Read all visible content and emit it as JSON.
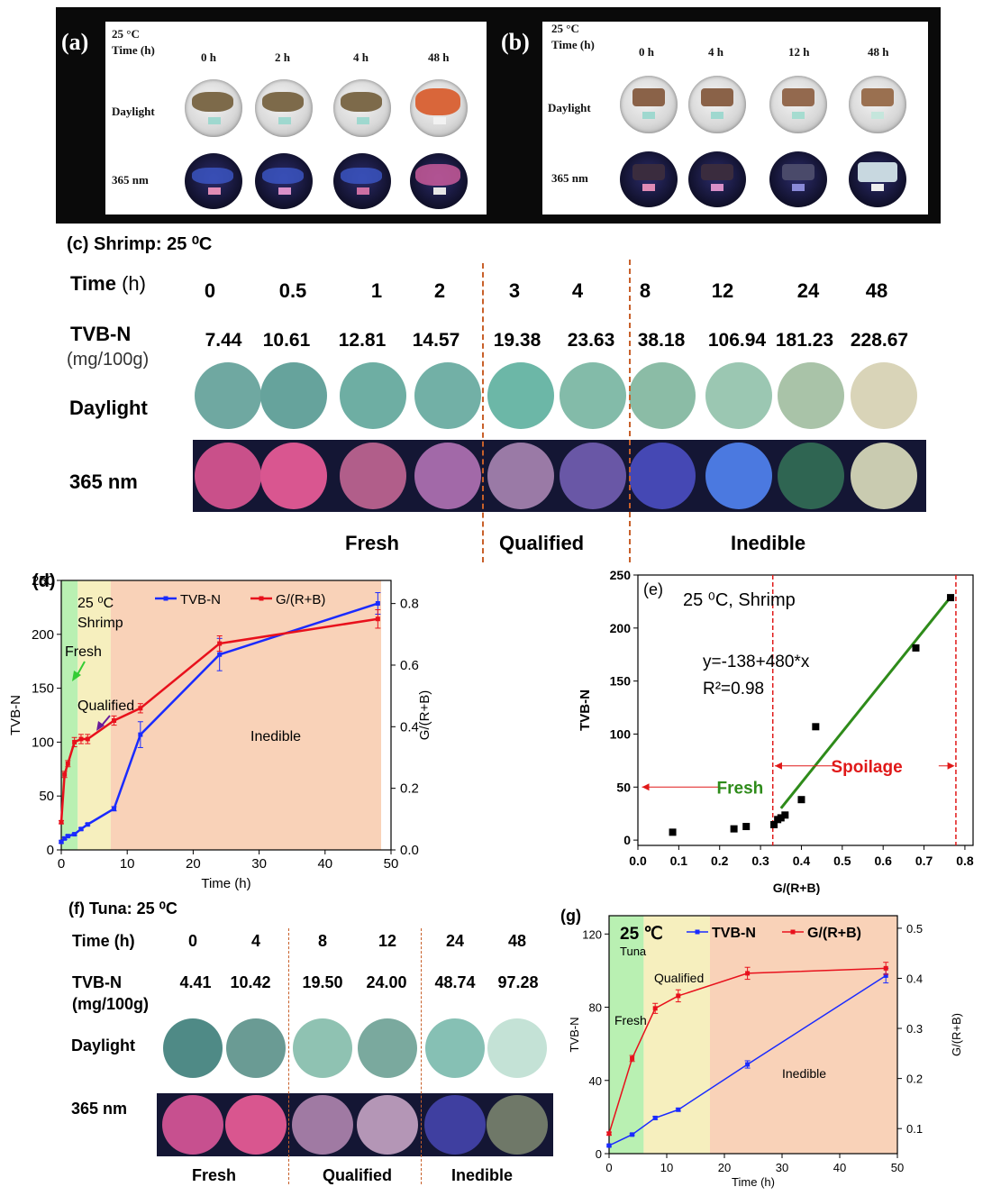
{
  "panel_a": {
    "tag": "(a)",
    "temp": "25 °C",
    "time_label": "Time (h)",
    "times": [
      "0 h",
      "2 h",
      "4 h",
      "48 h"
    ],
    "row_daylight": "Daylight",
    "row_uv": "365 nm"
  },
  "panel_b": {
    "tag": "(b)",
    "temp": "25 °C",
    "time_label": "Time (h)",
    "times": [
      "0 h",
      "4 h",
      "12 h",
      "48 h"
    ],
    "row_daylight": "Daylight",
    "row_uv": "365 nm"
  },
  "panel_c": {
    "title": "(c) Shrimp: 25 ⁰C",
    "time_label": "Time",
    "time_unit": "(h)",
    "times": [
      "0",
      "0.5",
      "1",
      "2",
      "3",
      "4",
      "8",
      "12",
      "24",
      "48"
    ],
    "tvbn_label": "TVB-N",
    "tvbn_unit": "(mg/100g)",
    "tvbn": [
      "7.44",
      "10.61",
      "12.81",
      "14.57",
      "19.38",
      "23.63",
      "38.18",
      "106.94",
      "181.23",
      "228.67"
    ],
    "row_daylight": "Daylight",
    "row_uv": "365 nm",
    "daylight_colors": [
      "#6fa8a1",
      "#66a39c",
      "#6eaea3",
      "#72b0a6",
      "#6cb7a7",
      "#83bba9",
      "#8bbca6",
      "#9bc7b2",
      "#a9c3a8",
      "#d9d4b8"
    ],
    "uv_colors": [
      "#c9508a",
      "#d95690",
      "#b15e8a",
      "#a269a8",
      "#9a7aa6",
      "#6957a6",
      "#4548b4",
      "#4b79e0",
      "#2f6552",
      "#c9cbb0"
    ],
    "categories": [
      "Fresh",
      "Qualified",
      "Inedible"
    ]
  },
  "panel_d": {
    "tag": "(d)",
    "ann_temp": "25 ⁰C",
    "ann_species": "Shrimp",
    "zone_fresh": "Fresh",
    "zone_qualified": "Qualified",
    "zone_inedible": "Inedible",
    "legend_tvbn": "TVB-N",
    "legend_ratio": "G/(R+B)",
    "xlabel": "Time (h)",
    "ylabel_left": "TVB-N",
    "ylabel_right": "G/(R+B)",
    "xticks": [
      "0",
      "10",
      "20",
      "30",
      "40",
      "50"
    ],
    "yticks_left": [
      "0",
      "50",
      "100",
      "150",
      "200",
      "250"
    ],
    "yticks_right": [
      "0.0",
      "0.2",
      "0.4",
      "0.6",
      "0.8"
    ]
  },
  "panel_e": {
    "tag": "(e)",
    "title": "25 ⁰C, Shrimp",
    "equation": "y=-138+480*x",
    "r2": "R²=0.98",
    "fresh_label": "Fresh",
    "spoilage_label": "Spoilage",
    "xlabel": "G/(R+B)",
    "ylabel": "TVB-N",
    "xticks": [
      "0.0",
      "0.1",
      "0.2",
      "0.3",
      "0.4",
      "0.5",
      "0.6",
      "0.7",
      "0.8"
    ],
    "yticks": [
      "0",
      "50",
      "100",
      "150",
      "200",
      "250"
    ]
  },
  "panel_f": {
    "title": "(f) Tuna: 25 ⁰C",
    "time_label": "Time (h)",
    "times": [
      "0",
      "4",
      "8",
      "12",
      "24",
      "48"
    ],
    "tvbn_label": "TVB-N",
    "tvbn_unit": "(mg/100g)",
    "tvbn": [
      "4.41",
      "10.42",
      "19.50",
      "24.00",
      "48.74",
      "97.28"
    ],
    "row_daylight": "Daylight",
    "row_uv": "365 nm",
    "daylight_colors": [
      "#4f8a86",
      "#6a9b94",
      "#8fc2b2",
      "#7aa99e",
      "#86c0b4",
      "#c4e2d6"
    ],
    "uv_colors": [
      "#c7508f",
      "#d9568f",
      "#a07aa3",
      "#b496b6",
      "#3f3fa0",
      "#6f7868"
    ],
    "categories": [
      "Fresh",
      "Qualified",
      "Inedible"
    ]
  },
  "panel_g": {
    "tag": "(g)",
    "ann_temp": "25 ℃",
    "ann_species": "Tuna",
    "zone_fresh": "Fresh",
    "zone_qualified": "Qualified",
    "zone_inedible": "Inedible",
    "legend_tvbn": "TVB-N",
    "legend_ratio": "G/(R+B)",
    "xlabel": "Time (h)",
    "ylabel_left": "TVB-N",
    "ylabel_right": "G/(R+B)",
    "xticks": [
      "0",
      "10",
      "20",
      "30",
      "40",
      "50"
    ],
    "yticks_left": [
      "0",
      "40",
      "80",
      "120"
    ],
    "yticks_right": [
      "0.1",
      "0.2",
      "0.3",
      "0.4",
      "0.5"
    ]
  },
  "chart_data": [
    {
      "id": "d",
      "type": "line",
      "xlim": [
        0,
        50
      ],
      "ylim_left": [
        0,
        250
      ],
      "ylim_right": [
        0,
        0.875
      ],
      "zones": [
        {
          "name": "Fresh",
          "from": 0,
          "to": 2.5,
          "color": "#b9f0b2"
        },
        {
          "name": "Qualified",
          "from": 2.5,
          "to": 7.5,
          "color": "#f6efbe"
        },
        {
          "name": "Inedible",
          "from": 7.5,
          "to": 48.5,
          "color": "#f9d2b8"
        }
      ],
      "series": [
        {
          "name": "TVB-N",
          "axis": "left",
          "color": "#1a2bff",
          "x": [
            0,
            0.5,
            1,
            2,
            3,
            4,
            8,
            12,
            24,
            48
          ],
          "y": [
            7.44,
            10.61,
            12.81,
            14.57,
            19.38,
            23.63,
            38.18,
            106.94,
            181.23,
            228.67
          ],
          "err": [
            1,
            1,
            1,
            1,
            1,
            1,
            2,
            12,
            15,
            10
          ]
        },
        {
          "name": "G/(R+B)",
          "axis": "right",
          "color": "#e8111c",
          "x": [
            0,
            0.5,
            1,
            2,
            3,
            4,
            8,
            12,
            24,
            48
          ],
          "y": [
            0.09,
            0.245,
            0.28,
            0.35,
            0.36,
            0.36,
            0.42,
            0.46,
            0.67,
            0.75
          ],
          "err": [
            0.005,
            0.01,
            0.01,
            0.015,
            0.015,
            0.015,
            0.015,
            0.015,
            0.025,
            0.03
          ]
        }
      ]
    },
    {
      "id": "e",
      "type": "scatter",
      "xlim": [
        0,
        0.82
      ],
      "ylim": [
        -5,
        250
      ],
      "points": {
        "x": [
          0.085,
          0.235,
          0.265,
          0.333,
          0.342,
          0.35,
          0.36,
          0.4,
          0.435,
          0.68,
          0.765
        ],
        "y": [
          7.44,
          10.61,
          12.81,
          14.57,
          19.38,
          21,
          23.63,
          38.18,
          106.94,
          181.23,
          228.67
        ]
      },
      "fit": {
        "intercept": -138,
        "slope": 480,
        "x_from": 0.35,
        "x_to": 0.765
      },
      "threshold_lines_x": [
        0.33,
        0.778
      ]
    },
    {
      "id": "g",
      "type": "line",
      "xlim": [
        0,
        50
      ],
      "ylim_left": [
        0,
        130
      ],
      "ylim_right": [
        0.05,
        0.525
      ],
      "zones": [
        {
          "name": "Fresh",
          "from": -1,
          "to": 6,
          "color": "#b9f0b2"
        },
        {
          "name": "Qualified",
          "from": 6,
          "to": 17.5,
          "color": "#f6efbe"
        },
        {
          "name": "Inedible",
          "from": 17.5,
          "to": 50,
          "color": "#f9d2b8"
        }
      ],
      "series": [
        {
          "name": "TVB-N",
          "axis": "left",
          "color": "#1a2bff",
          "x": [
            0,
            4,
            8,
            12,
            24,
            48
          ],
          "y": [
            4.41,
            10.42,
            19.5,
            24.0,
            48.74,
            97.28
          ],
          "err": [
            0.5,
            0.5,
            0.8,
            0.8,
            2,
            4
          ]
        },
        {
          "name": "G/(R+B)",
          "axis": "right",
          "color": "#e8111c",
          "x": [
            0,
            4,
            8,
            12,
            24,
            48
          ],
          "y": [
            0.09,
            0.24,
            0.34,
            0.365,
            0.41,
            0.42
          ],
          "err": [
            0.003,
            0.006,
            0.01,
            0.012,
            0.012,
            0.012
          ]
        }
      ]
    }
  ]
}
